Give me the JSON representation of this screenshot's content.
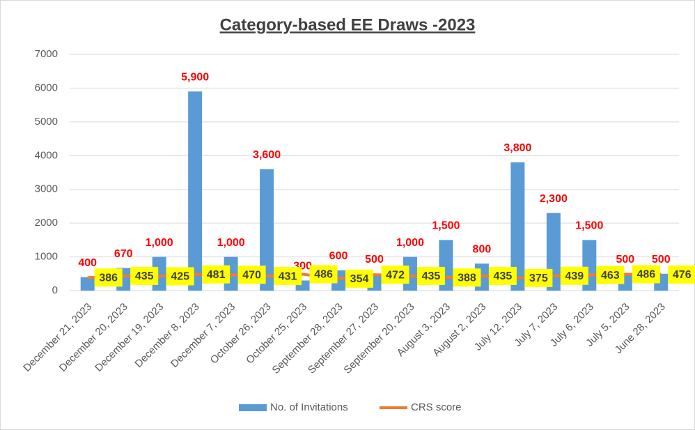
{
  "chart_data": {
    "type": "bar-line",
    "title": "Category-based EE Draws -2023",
    "categories": [
      "December 21, 2023",
      "December 20, 2023",
      "December 19, 2023",
      "December 8, 2023",
      "December 7, 2023",
      "October 26, 2023",
      "October 25, 2023",
      "September 28, 2023",
      "September 27, 2023",
      "September 20, 2023",
      "August 3, 2023",
      "August 2, 2023",
      "July 12, 2023",
      "July 7, 2023",
      "July 6, 2023",
      "July 5, 2023",
      "June 28, 2023"
    ],
    "series": [
      {
        "name": "No. of Invitations",
        "type": "bar",
        "color": "#5b9bd5",
        "label_color": "#ff0000",
        "values": [
          400,
          670,
          1000,
          5900,
          1000,
          3600,
          300,
          600,
          500,
          1000,
          1500,
          800,
          3800,
          2300,
          1500,
          500,
          500
        ],
        "value_labels": [
          "400",
          "670",
          "1,000",
          "5,900",
          "1,000",
          "3,600",
          "300",
          "600",
          "500",
          "1,000",
          "1,500",
          "800",
          "3,800",
          "2,300",
          "1,500",
          "500",
          "500"
        ]
      },
      {
        "name": "CRS score",
        "type": "line",
        "color": "#ed7d31",
        "label_color": "#ffff00",
        "values": [
          386,
          435,
          425,
          481,
          470,
          431,
          486,
          354,
          472,
          435,
          388,
          435,
          375,
          439,
          463,
          486,
          476
        ]
      }
    ],
    "ylim": [
      0,
      7000
    ],
    "yticks": [
      0,
      1000,
      2000,
      3000,
      4000,
      5000,
      6000,
      7000
    ],
    "grid": true,
    "legend": "bottom"
  }
}
